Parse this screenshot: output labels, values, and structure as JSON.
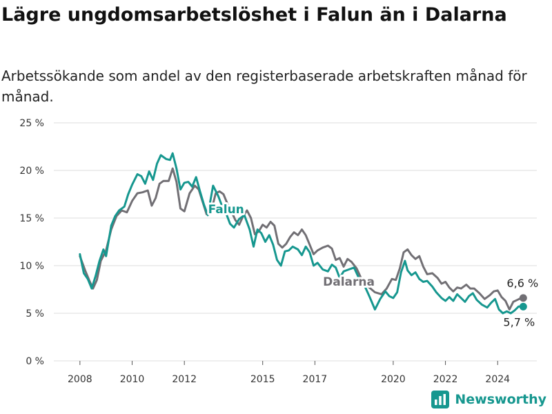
{
  "header": {
    "title": "Lägre ungdomsarbetslöshet i Falun än i Dalarna",
    "subtitle": "Arbetssökande som andel av den registerbaserade arbetskraften månad för månad."
  },
  "brand": {
    "name": "Newsworthy",
    "icon": "bar-chart-logo-icon",
    "color": "#16978f"
  },
  "colors": {
    "falun": "#16978f",
    "dalarna": "#716f74",
    "grid": "#dcdcdc"
  },
  "chart_data": {
    "type": "line",
    "title": "Lägre ungdomsarbetslöshet i Falun än i Dalarna",
    "subtitle": "Arbetssökande som andel av den registerbaserade arbetskraften månad för månad.",
    "xlabel": "",
    "ylabel": "",
    "ylim": [
      0,
      25
    ],
    "xlim": [
      2007.0,
      2025.5
    ],
    "yticks": [
      0,
      5,
      10,
      15,
      20,
      25
    ],
    "ytick_labels": [
      "0 %",
      "5 %",
      "10 %",
      "15 %",
      "20 %",
      "25 %"
    ],
    "xticks": [
      2008,
      2010,
      2012,
      2015,
      2017,
      2020,
      2022,
      2024
    ],
    "xtick_labels": [
      "2008",
      "2010",
      "2012",
      "2015",
      "2017",
      "2020",
      "2022",
      "2024"
    ],
    "grid": true,
    "legend": "inline labels on lines",
    "series": [
      {
        "name": "Dalarna",
        "color": "#716f74",
        "label_at": [
          2018.3,
          7.9
        ],
        "end_label": "6,6 %",
        "points": [
          [
            2008.0,
            11.0
          ],
          [
            2008.2,
            9.5
          ],
          [
            2008.35,
            8.5
          ],
          [
            2008.5,
            7.6
          ],
          [
            2008.65,
            8.5
          ],
          [
            2008.8,
            10.5
          ],
          [
            2009.0,
            11.6
          ],
          [
            2009.2,
            13.8
          ],
          [
            2009.4,
            15.2
          ],
          [
            2009.6,
            15.8
          ],
          [
            2009.8,
            15.6
          ],
          [
            2010.0,
            16.8
          ],
          [
            2010.2,
            17.6
          ],
          [
            2010.4,
            17.7
          ],
          [
            2010.6,
            17.9
          ],
          [
            2010.75,
            16.3
          ],
          [
            2010.9,
            17.1
          ],
          [
            2011.05,
            18.6
          ],
          [
            2011.2,
            18.9
          ],
          [
            2011.4,
            18.9
          ],
          [
            2011.55,
            20.2
          ],
          [
            2011.7,
            18.8
          ],
          [
            2011.85,
            16.0
          ],
          [
            2012.0,
            15.7
          ],
          [
            2012.2,
            17.6
          ],
          [
            2012.4,
            18.4
          ],
          [
            2012.55,
            18.0
          ],
          [
            2012.7,
            16.7
          ],
          [
            2012.85,
            15.4
          ],
          [
            2013.0,
            15.4
          ],
          [
            2013.2,
            17.6
          ],
          [
            2013.35,
            17.8
          ],
          [
            2013.5,
            17.5
          ],
          [
            2013.65,
            16.5
          ],
          [
            2013.8,
            15.7
          ],
          [
            2013.95,
            14.8
          ],
          [
            2014.1,
            14.3
          ],
          [
            2014.25,
            15.2
          ],
          [
            2014.4,
            15.8
          ],
          [
            2014.55,
            15.0
          ],
          [
            2014.7,
            13.3
          ],
          [
            2014.85,
            13.6
          ],
          [
            2015.0,
            14.3
          ],
          [
            2015.15,
            14.0
          ],
          [
            2015.3,
            14.6
          ],
          [
            2015.45,
            14.2
          ],
          [
            2015.6,
            12.3
          ],
          [
            2015.75,
            11.9
          ],
          [
            2015.9,
            12.3
          ],
          [
            2016.05,
            13.0
          ],
          [
            2016.2,
            13.5
          ],
          [
            2016.35,
            13.2
          ],
          [
            2016.5,
            13.8
          ],
          [
            2016.65,
            13.2
          ],
          [
            2016.8,
            12.2
          ],
          [
            2016.95,
            11.2
          ],
          [
            2017.1,
            11.6
          ],
          [
            2017.3,
            11.9
          ],
          [
            2017.5,
            12.1
          ],
          [
            2017.65,
            11.8
          ],
          [
            2017.8,
            10.6
          ],
          [
            2017.95,
            10.8
          ],
          [
            2018.1,
            9.9
          ],
          [
            2018.25,
            10.7
          ],
          [
            2018.4,
            10.4
          ],
          [
            2018.6,
            9.7
          ],
          [
            2018.8,
            8.5
          ],
          [
            2019.0,
            7.9
          ],
          [
            2019.3,
            7.2
          ],
          [
            2019.55,
            7.0
          ],
          [
            2019.75,
            7.6
          ],
          [
            2019.95,
            8.6
          ],
          [
            2020.1,
            8.5
          ],
          [
            2020.25,
            9.7
          ],
          [
            2020.4,
            11.4
          ],
          [
            2020.55,
            11.7
          ],
          [
            2020.7,
            11.1
          ],
          [
            2020.85,
            10.7
          ],
          [
            2021.0,
            11.0
          ],
          [
            2021.15,
            9.9
          ],
          [
            2021.3,
            9.1
          ],
          [
            2021.5,
            9.2
          ],
          [
            2021.7,
            8.7
          ],
          [
            2021.85,
            8.1
          ],
          [
            2022.0,
            8.3
          ],
          [
            2022.15,
            7.7
          ],
          [
            2022.3,
            7.3
          ],
          [
            2022.45,
            7.7
          ],
          [
            2022.6,
            7.6
          ],
          [
            2022.8,
            8.0
          ],
          [
            2022.95,
            7.6
          ],
          [
            2023.1,
            7.6
          ],
          [
            2023.3,
            7.1
          ],
          [
            2023.5,
            6.5
          ],
          [
            2023.7,
            6.9
          ],
          [
            2023.85,
            7.3
          ],
          [
            2024.0,
            7.4
          ],
          [
            2024.15,
            6.7
          ],
          [
            2024.3,
            6.3
          ],
          [
            2024.45,
            5.4
          ],
          [
            2024.6,
            6.2
          ],
          [
            2024.75,
            6.4
          ],
          [
            2024.9,
            6.6
          ]
        ]
      },
      {
        "name": "Falun",
        "color": "#16978f",
        "label_at": [
          2013.6,
          15.5
        ],
        "end_label": "5,7 %",
        "points": [
          [
            2008.0,
            11.2
          ],
          [
            2008.15,
            9.2
          ],
          [
            2008.3,
            8.6
          ],
          [
            2008.45,
            7.6
          ],
          [
            2008.6,
            8.9
          ],
          [
            2008.75,
            10.5
          ],
          [
            2008.9,
            11.7
          ],
          [
            2009.0,
            11.0
          ],
          [
            2009.2,
            14.2
          ],
          [
            2009.35,
            15.2
          ],
          [
            2009.5,
            15.8
          ],
          [
            2009.7,
            16.2
          ],
          [
            2009.85,
            17.5
          ],
          [
            2010.0,
            18.5
          ],
          [
            2010.2,
            19.6
          ],
          [
            2010.35,
            19.4
          ],
          [
            2010.5,
            18.6
          ],
          [
            2010.65,
            19.9
          ],
          [
            2010.8,
            19.0
          ],
          [
            2010.95,
            20.7
          ],
          [
            2011.1,
            21.6
          ],
          [
            2011.3,
            21.2
          ],
          [
            2011.45,
            21.1
          ],
          [
            2011.55,
            21.8
          ],
          [
            2011.7,
            20.2
          ],
          [
            2011.85,
            18.0
          ],
          [
            2012.0,
            18.7
          ],
          [
            2012.15,
            18.8
          ],
          [
            2012.3,
            18.3
          ],
          [
            2012.45,
            19.3
          ],
          [
            2012.6,
            17.8
          ],
          [
            2012.75,
            16.4
          ],
          [
            2012.9,
            15.3
          ],
          [
            2013.1,
            18.4
          ],
          [
            2013.3,
            17.3
          ],
          [
            2013.45,
            16.2
          ],
          [
            2013.6,
            15.5
          ],
          [
            2013.75,
            14.4
          ],
          [
            2013.9,
            14.0
          ],
          [
            2014.1,
            14.9
          ],
          [
            2014.3,
            15.3
          ],
          [
            2014.5,
            13.8
          ],
          [
            2014.65,
            12.0
          ],
          [
            2014.8,
            13.8
          ],
          [
            2014.95,
            13.4
          ],
          [
            2015.1,
            12.5
          ],
          [
            2015.25,
            13.2
          ],
          [
            2015.4,
            12.2
          ],
          [
            2015.55,
            10.6
          ],
          [
            2015.7,
            10.0
          ],
          [
            2015.85,
            11.5
          ],
          [
            2016.0,
            11.6
          ],
          [
            2016.15,
            12.0
          ],
          [
            2016.35,
            11.7
          ],
          [
            2016.5,
            11.1
          ],
          [
            2016.65,
            12.0
          ],
          [
            2016.8,
            11.4
          ],
          [
            2016.95,
            10.0
          ],
          [
            2017.1,
            10.3
          ],
          [
            2017.3,
            9.6
          ],
          [
            2017.5,
            9.4
          ],
          [
            2017.65,
            10.1
          ],
          [
            2017.8,
            9.8
          ],
          [
            2017.95,
            8.7
          ],
          [
            2018.1,
            9.4
          ],
          [
            2018.3,
            9.6
          ],
          [
            2018.5,
            9.8
          ],
          [
            2018.7,
            8.6
          ],
          [
            2018.9,
            7.9
          ],
          [
            2019.1,
            6.7
          ],
          [
            2019.3,
            5.4
          ],
          [
            2019.5,
            6.5
          ],
          [
            2019.7,
            7.3
          ],
          [
            2019.85,
            6.8
          ],
          [
            2020.0,
            6.6
          ],
          [
            2020.15,
            7.2
          ],
          [
            2020.3,
            9.3
          ],
          [
            2020.45,
            10.5
          ],
          [
            2020.55,
            9.5
          ],
          [
            2020.7,
            9.0
          ],
          [
            2020.85,
            9.3
          ],
          [
            2021.0,
            8.6
          ],
          [
            2021.15,
            8.3
          ],
          [
            2021.3,
            8.4
          ],
          [
            2021.5,
            7.8
          ],
          [
            2021.65,
            7.2
          ],
          [
            2021.85,
            6.6
          ],
          [
            2022.0,
            6.3
          ],
          [
            2022.15,
            6.7
          ],
          [
            2022.3,
            6.3
          ],
          [
            2022.45,
            7.0
          ],
          [
            2022.6,
            6.6
          ],
          [
            2022.75,
            6.2
          ],
          [
            2022.9,
            6.8
          ],
          [
            2023.05,
            7.1
          ],
          [
            2023.2,
            6.4
          ],
          [
            2023.4,
            5.9
          ],
          [
            2023.6,
            5.6
          ],
          [
            2023.75,
            6.1
          ],
          [
            2023.9,
            6.5
          ],
          [
            2024.05,
            5.4
          ],
          [
            2024.2,
            5.0
          ],
          [
            2024.35,
            5.2
          ],
          [
            2024.5,
            5.0
          ],
          [
            2024.65,
            5.3
          ],
          [
            2024.8,
            5.7
          ],
          [
            2024.9,
            5.7
          ]
        ]
      }
    ]
  }
}
